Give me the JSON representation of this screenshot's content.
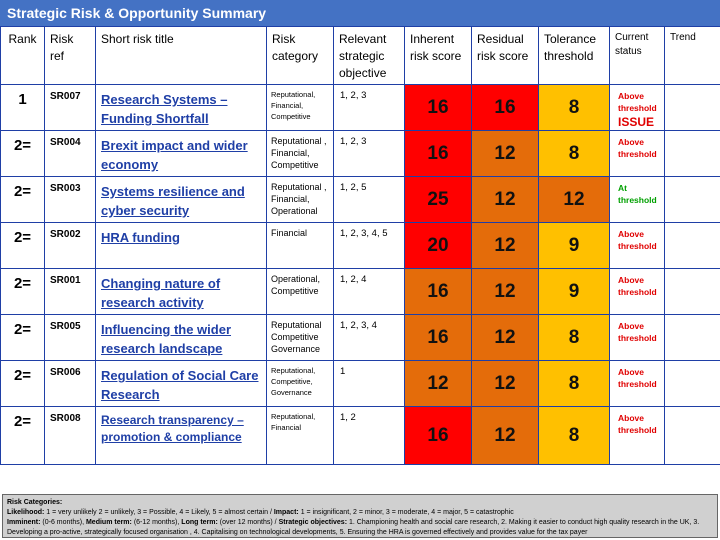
{
  "title": "Strategic Risk & Opportunity Summary",
  "headers": {
    "rank": "Rank",
    "risk_ref": "Risk ref",
    "short_title": "Short risk title",
    "category": "Risk category",
    "objective": "Relevant strategic objective",
    "inherent": "Inherent risk score",
    "residual": "Residual risk score",
    "tolerance": "Tolerance threshold",
    "status": "Current status",
    "trend": "Trend"
  },
  "rows": [
    {
      "rank": "1",
      "ref": "SR007",
      "title": "Research Systems – Funding Shortfall",
      "category": "Reputational, Financial, Competitive",
      "objective": "1, 2, 3",
      "inherent": "16",
      "residual": "16",
      "tolerance": "8",
      "status": "Above threshold",
      "issue": "ISSUE",
      "trend": ""
    },
    {
      "rank": "2=",
      "ref": "SR004",
      "title": "Brexit impact and wider economy",
      "category": "Reputational , Financial, Competitive",
      "objective": "1, 2, 3",
      "inherent": "16",
      "residual": "12",
      "tolerance": "8",
      "status": "Above threshold",
      "trend": ""
    },
    {
      "rank": "2=",
      "ref": "SR003",
      "title": "Systems resilience and cyber security",
      "category": "Reputational , Financial, Operational",
      "objective": "1, 2, 5",
      "inherent": "25",
      "residual": "12",
      "tolerance": "12",
      "status": "At threshold",
      "trend": ""
    },
    {
      "rank": "2=",
      "ref": "SR002",
      "title": "HRA funding",
      "category": "Financial",
      "objective": "1, 2, 3, 4, 5",
      "inherent": "20",
      "residual": "12",
      "tolerance": "9",
      "status": "Above threshold",
      "trend": ""
    },
    {
      "rank": "2=",
      "ref": "SR001",
      "title": "Changing nature of research activity",
      "category": "Operational, Competitive",
      "objective": "1, 2, 4",
      "inherent": "16",
      "residual": "12",
      "tolerance": "9",
      "status": "Above threshold",
      "trend": ""
    },
    {
      "rank": "2=",
      "ref": "SR005",
      "title": "Influencing the wider research landscape",
      "category": "Reputational Competitive Governance",
      "objective": "1, 2, 3, 4",
      "inherent": "16",
      "residual": "12",
      "tolerance": "8",
      "status": "Above threshold",
      "trend": ""
    },
    {
      "rank": "2=",
      "ref": "SR006",
      "title": "Regulation of Social Care Research",
      "category": "Reputational, Competitive, Governance",
      "objective": "1",
      "inherent": "12",
      "residual": "12",
      "tolerance": "8",
      "status": "Above threshold",
      "trend": ""
    },
    {
      "rank": "2=",
      "ref": "SR008",
      "title": "Research transparency – promotion & compliance",
      "category": "Reputational, Financial",
      "objective": "1, 2",
      "inherent": "16",
      "residual": "12",
      "tolerance": "8",
      "status": "Above threshold",
      "trend": ""
    }
  ],
  "colors": {
    "title_bar": "#4472c4",
    "red": "#ff0000",
    "orange": "#e46c0a",
    "amber": "#ffc000",
    "link": "#1f3fa6",
    "above_threshold": "#e00000",
    "at_threshold": "#00a000"
  },
  "footer": {
    "heading": "Risk Categories:",
    "likelihood_label": "Likelihood:",
    "likelihood_text": " 1 = very unlikely 2 = unlikely, 3 = Possible, 4 = Likely, 5 = almost certain / ",
    "impact_label": "Impact:",
    "impact_text": " 1 = insignificant, 2  = minor, 3 = moderate, 4 = major, 5 = catastrophic",
    "imminent_label": "Imminent:",
    "imminent_text": " (0-6 months), ",
    "medium_label": "Medium term:",
    "medium_text": " (6-12 months), ",
    "long_label": "Long term:",
    "long_text": " (over 12 months) /  ",
    "objectives_label": "Strategic objectives:",
    "objectives_text": " 1. Championing health and social care research, 2. Making it easier to conduct high quality research in the UK, 3. Developing a pro-active, strategically focused organisation , 4. Capitalising on technological developments, 5. Ensuring the HRA is governed effectively and provides value for the tax payer"
  }
}
